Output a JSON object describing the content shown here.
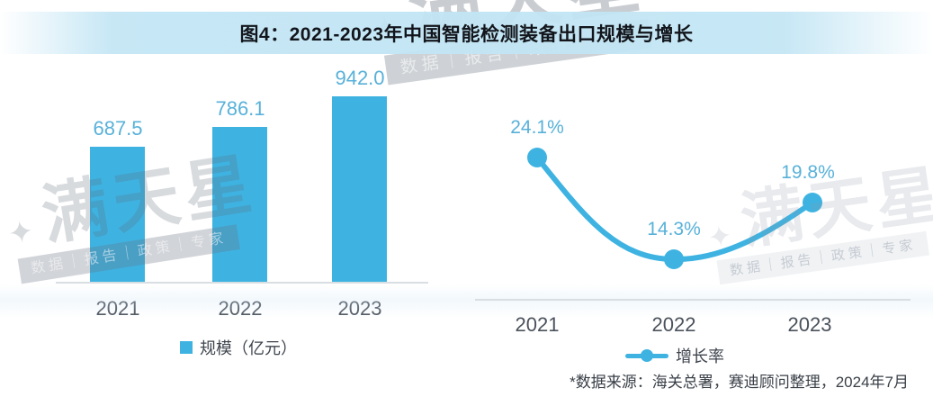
{
  "header": {
    "title": "图4：2021-2023年中国智能检测装备出口规模与增长"
  },
  "watermark": {
    "star": "✦",
    "brand": "满天星",
    "tagline": "数据｜报告｜政策｜专家"
  },
  "bar_chart": {
    "value_labels": [
      "687.5",
      "786.1",
      "942.0"
    ],
    "x_labels": [
      "2021",
      "2022",
      "2023"
    ],
    "legend": "规模（亿元）"
  },
  "line_chart": {
    "value_labels": [
      "24.1%",
      "14.3%",
      "19.8%"
    ],
    "x_labels": [
      "2021",
      "2022",
      "2023"
    ],
    "legend": "增长率"
  },
  "footer": {
    "source_note": "*数据来源：海关总署，赛迪顾问整理，2024年7月"
  },
  "colors": {
    "accent_blue": "#3EB3E2",
    "value_label_blue": "#58B1D9",
    "title_band_blue": "#C2E5F4",
    "axis_grey": "#D9DEE3",
    "text_grey": "#4B525C"
  },
  "chart_data": [
    {
      "type": "bar",
      "title": "图4：2021-2023年中国智能检测装备出口规模与增长",
      "categories": [
        "2021",
        "2022",
        "2023"
      ],
      "values": [
        687.5,
        786.1,
        942.0
      ],
      "series_name": "规模（亿元）",
      "xlabel": "",
      "ylabel": "规模（亿元）",
      "ylim": [
        0,
        1000
      ],
      "grid": false,
      "legend_position": "bottom",
      "bar_color": "#3EB3E2",
      "data_labels": true
    },
    {
      "type": "line",
      "title": "图4：2021-2023年中国智能检测装备出口规模与增长",
      "categories": [
        "2021",
        "2022",
        "2023"
      ],
      "values": [
        24.1,
        14.3,
        19.8
      ],
      "series_name": "增长率",
      "unit": "%",
      "xlabel": "",
      "ylabel": "增长率（%）",
      "ylim": [
        10,
        30
      ],
      "grid": false,
      "smooth": true,
      "legend_position": "bottom",
      "line_color": "#3EB3E2",
      "data_labels": true
    }
  ]
}
